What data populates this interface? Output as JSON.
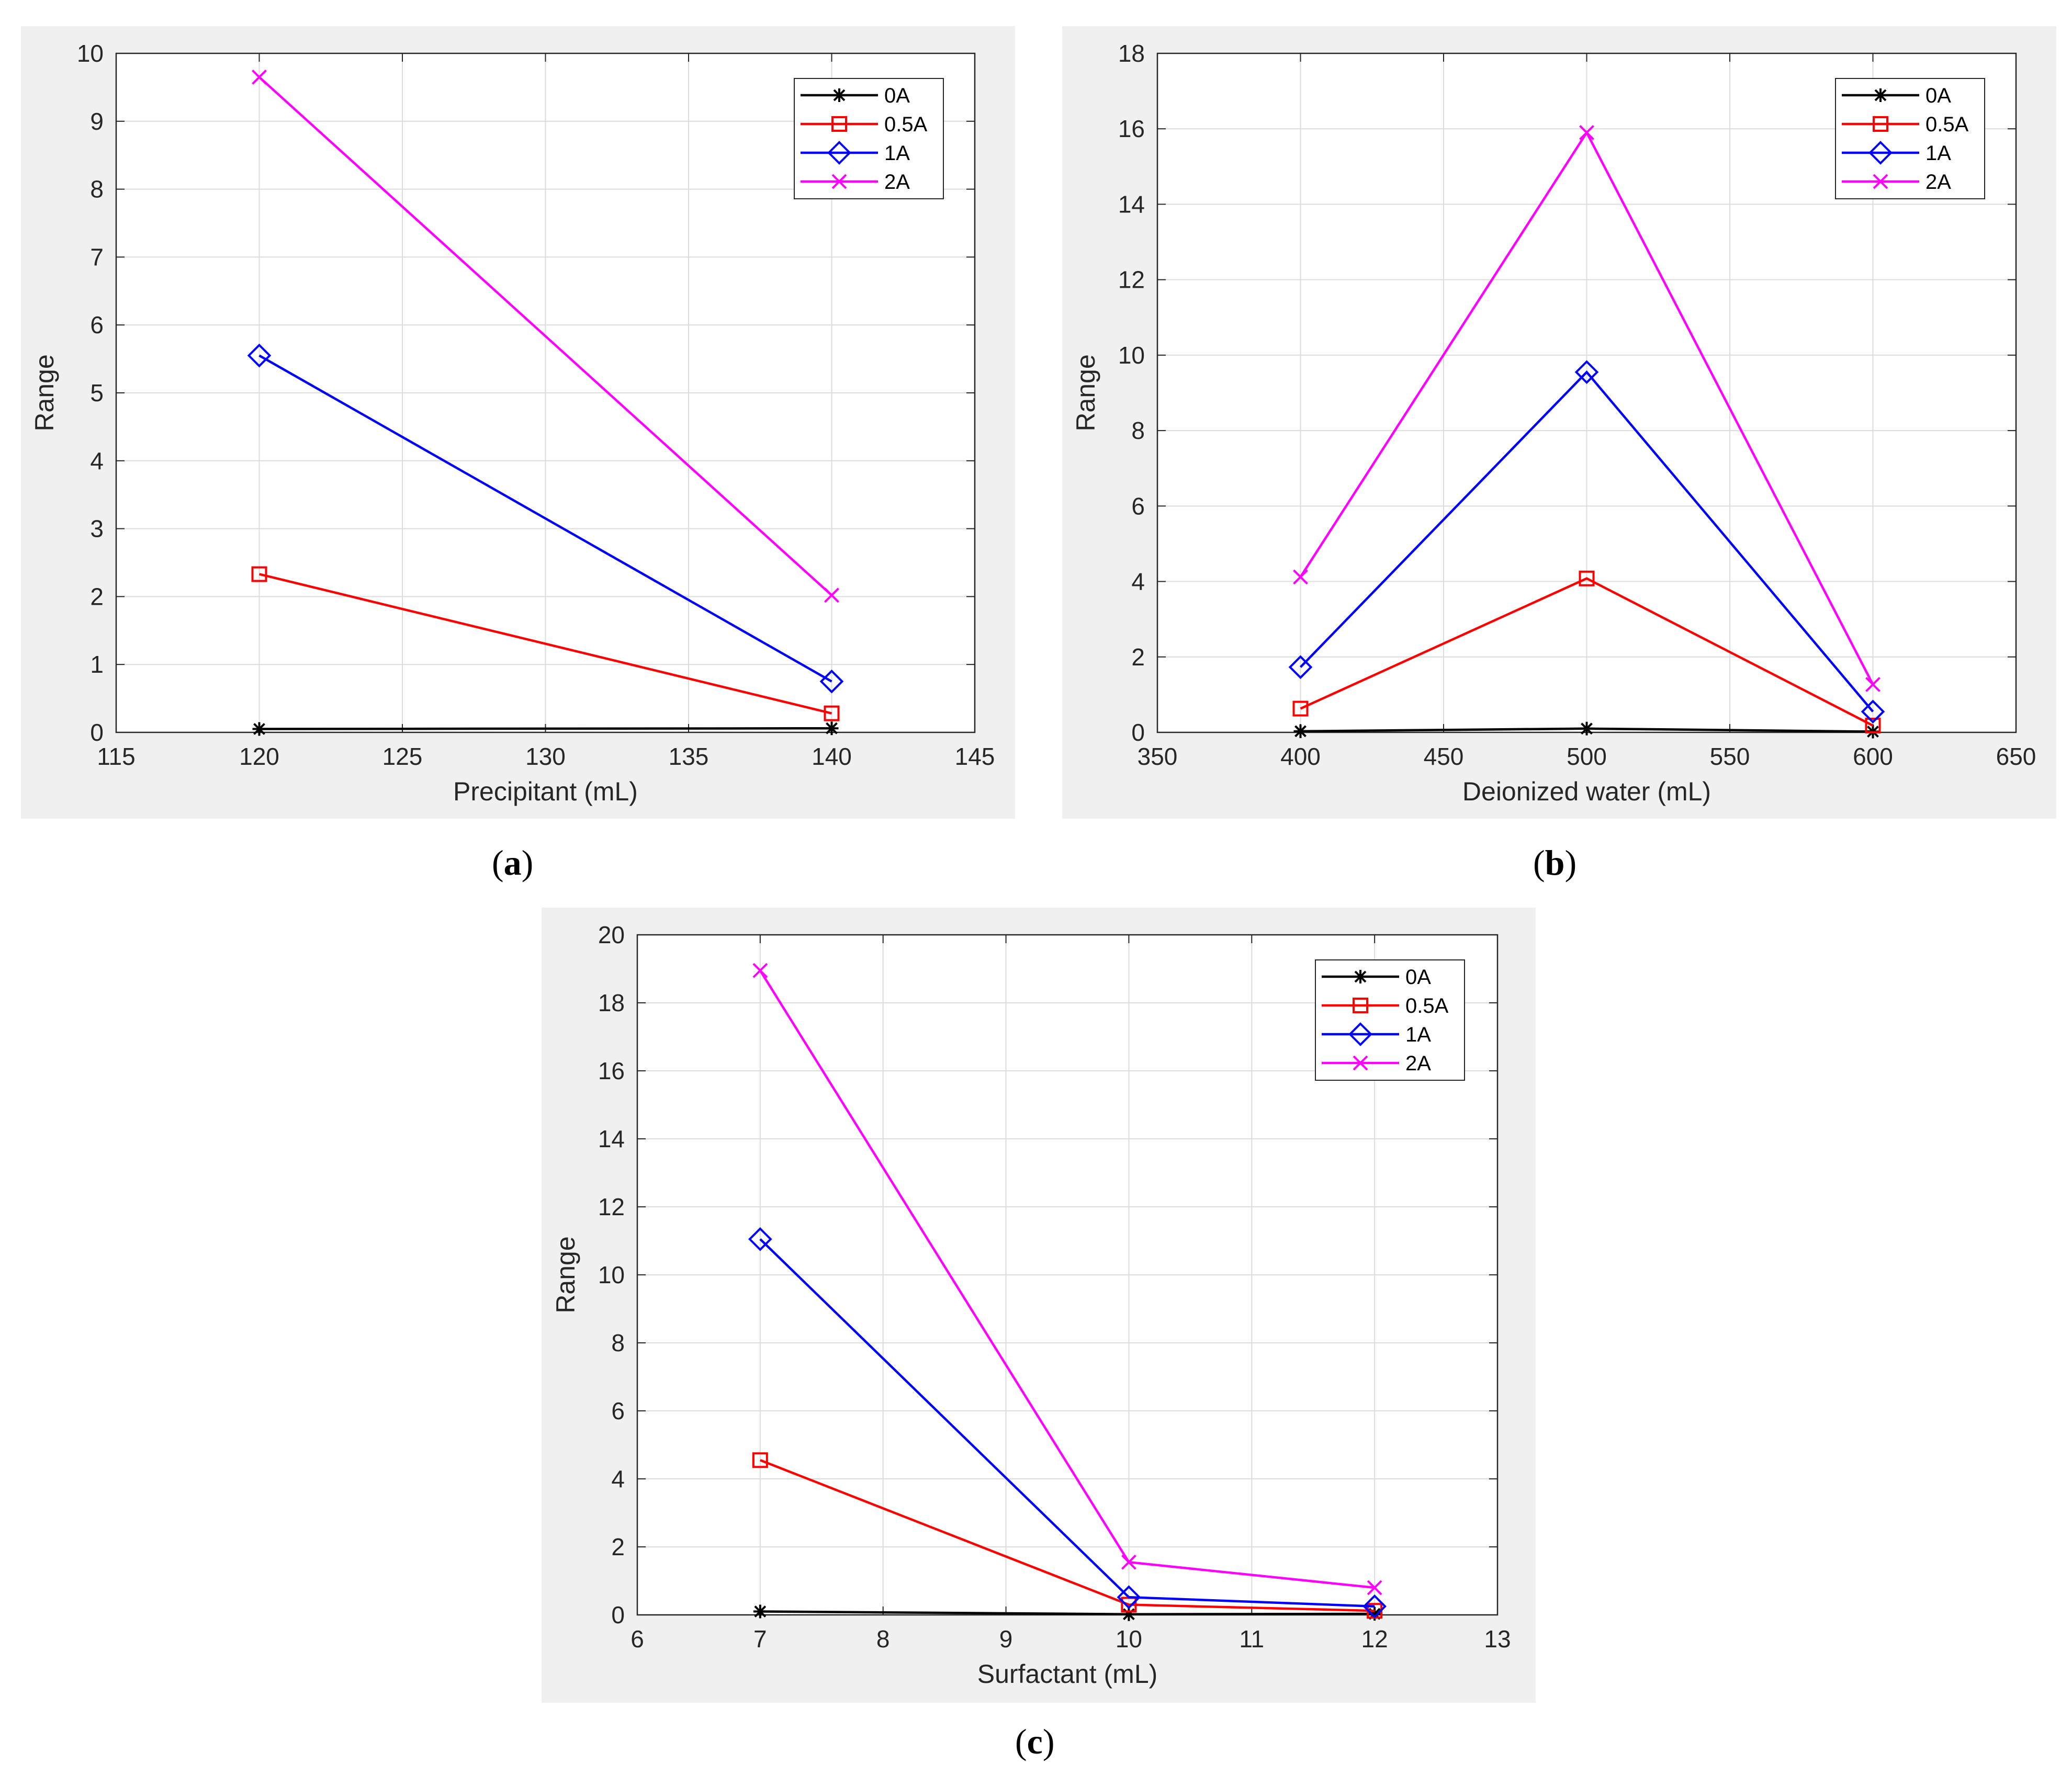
{
  "colors": {
    "0A": "#000000",
    "0.5A": "#ff0000",
    "1A": "#0000ff",
    "2A": "#ff00ff"
  },
  "chart_data": [
    {
      "type": "line",
      "caption": "a",
      "xlabel": "Precipitant (mL)",
      "ylabel": "Range",
      "xlim": [
        115,
        145
      ],
      "ylim": [
        0,
        10
      ],
      "xticks": [
        115,
        120,
        125,
        130,
        135,
        140,
        145
      ],
      "yticks": [
        0,
        1,
        2,
        3,
        4,
        5,
        6,
        7,
        8,
        9,
        10
      ],
      "grid": true,
      "legend_position": "top-right",
      "x": [
        120,
        140
      ],
      "series": [
        {
          "name": "0A",
          "marker": "asterisk",
          "values": [
            0.05,
            0.06
          ]
        },
        {
          "name": "0.5A",
          "marker": "square",
          "values": [
            2.33,
            0.28
          ]
        },
        {
          "name": "1A",
          "marker": "diamond",
          "values": [
            5.55,
            0.75
          ]
        },
        {
          "name": "2A",
          "marker": "x",
          "values": [
            9.65,
            2.02
          ]
        }
      ]
    },
    {
      "type": "line",
      "caption": "b",
      "xlabel": "Deionized water (mL)",
      "ylabel": "Range",
      "xlim": [
        350,
        650
      ],
      "ylim": [
        0,
        18
      ],
      "xticks": [
        350,
        400,
        450,
        500,
        550,
        600,
        650
      ],
      "yticks": [
        0,
        2,
        4,
        6,
        8,
        10,
        12,
        14,
        16,
        18
      ],
      "grid": true,
      "legend_position": "top-right",
      "x": [
        400,
        500,
        600
      ],
      "series": [
        {
          "name": "0A",
          "marker": "asterisk",
          "values": [
            0.03,
            0.1,
            0.02
          ]
        },
        {
          "name": "0.5A",
          "marker": "square",
          "values": [
            0.63,
            4.08,
            0.18
          ]
        },
        {
          "name": "1A",
          "marker": "diamond",
          "values": [
            1.73,
            9.55,
            0.55
          ]
        },
        {
          "name": "2A",
          "marker": "x",
          "values": [
            4.12,
            15.9,
            1.27
          ]
        }
      ]
    },
    {
      "type": "line",
      "caption": "c",
      "xlabel": "Surfactant (mL)",
      "ylabel": "Range",
      "xlim": [
        6,
        13
      ],
      "ylim": [
        0,
        20
      ],
      "xticks": [
        6,
        7,
        8,
        9,
        10,
        11,
        12,
        13
      ],
      "yticks": [
        0,
        2,
        4,
        6,
        8,
        10,
        12,
        14,
        16,
        18,
        20
      ],
      "grid": true,
      "legend_position": "top-right",
      "x": [
        7,
        10,
        12
      ],
      "series": [
        {
          "name": "0A",
          "marker": "asterisk",
          "values": [
            0.1,
            0.02,
            0.03
          ]
        },
        {
          "name": "0.5A",
          "marker": "square",
          "values": [
            4.55,
            0.3,
            0.12
          ]
        },
        {
          "name": "1A",
          "marker": "diamond",
          "values": [
            11.05,
            0.52,
            0.25
          ]
        },
        {
          "name": "2A",
          "marker": "x",
          "values": [
            18.95,
            1.55,
            0.8
          ]
        }
      ]
    }
  ]
}
